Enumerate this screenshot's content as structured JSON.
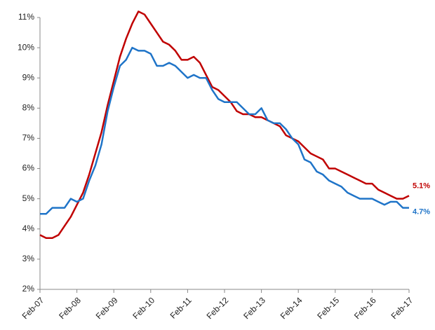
{
  "chart_data": {
    "type": "line",
    "categories": [
      "Feb-07",
      null,
      null,
      null,
      null,
      null,
      "Feb-08",
      null,
      null,
      null,
      null,
      null,
      "Feb-09",
      null,
      null,
      null,
      null,
      null,
      "Feb-10",
      null,
      null,
      null,
      null,
      null,
      "Feb-11",
      null,
      null,
      null,
      null,
      null,
      "Feb-12",
      null,
      null,
      null,
      null,
      null,
      "Feb-13",
      null,
      null,
      null,
      null,
      null,
      "Feb-14",
      null,
      null,
      null,
      null,
      null,
      "Feb-15",
      null,
      null,
      null,
      null,
      null,
      "Feb-16",
      null,
      null,
      null,
      null,
      null,
      "Feb-17"
    ],
    "series": [
      {
        "color": "#c00000",
        "values": [
          3.8,
          3.7,
          3.7,
          3.8,
          4.1,
          4.4,
          4.8,
          5.2,
          5.8,
          6.5,
          7.2,
          8.1,
          8.9,
          9.7,
          10.3,
          10.8,
          11.2,
          11.1,
          10.8,
          10.5,
          10.2,
          10.1,
          9.9,
          9.6,
          9.6,
          9.7,
          9.5,
          9.1,
          8.7,
          8.6,
          8.4,
          8.2,
          7.9,
          7.8,
          7.8,
          7.7,
          7.7,
          7.6,
          7.5,
          7.4,
          7.1,
          7.0,
          6.9,
          6.7,
          6.5,
          6.4,
          6.3,
          6.0,
          6.0,
          5.9,
          5.8,
          5.7,
          5.6,
          5.5,
          5.5,
          5.3,
          5.2,
          5.1,
          5.0,
          5.0,
          5.1
        ],
        "value_labels": [
          null,
          null,
          null,
          null,
          null,
          null,
          null,
          null,
          null,
          null,
          null,
          null,
          null,
          null,
          null,
          null,
          null,
          null,
          null,
          null,
          null,
          null,
          null,
          null,
          null,
          null,
          null,
          null,
          null,
          null,
          null,
          null,
          null,
          null,
          null,
          null,
          null,
          null,
          null,
          null,
          null,
          null,
          null,
          null,
          null,
          null,
          null,
          null,
          null,
          null,
          null,
          null,
          null,
          null,
          null,
          null,
          null,
          null,
          null,
          null,
          "5.1%"
        ]
      },
      {
        "color": "#1f74c8",
        "values": [
          4.5,
          4.5,
          4.7,
          4.7,
          4.7,
          5.0,
          4.9,
          5.0,
          5.6,
          6.1,
          6.8,
          7.9,
          8.7,
          9.4,
          9.6,
          10.0,
          9.9,
          9.9,
          9.8,
          9.4,
          9.4,
          9.5,
          9.4,
          9.2,
          9.0,
          9.1,
          9.0,
          9.0,
          8.6,
          8.3,
          8.2,
          8.2,
          8.2,
          8.0,
          7.8,
          7.8,
          8.0,
          7.6,
          7.5,
          7.5,
          7.3,
          7.0,
          6.8,
          6.3,
          6.2,
          5.9,
          5.8,
          5.6,
          5.5,
          5.4,
          5.2,
          5.1,
          5.0,
          5.0,
          5.0,
          4.9,
          4.8,
          4.9,
          4.9,
          4.7,
          4.7
        ],
        "value_labels": [
          null,
          null,
          null,
          null,
          null,
          null,
          null,
          null,
          null,
          null,
          null,
          null,
          null,
          null,
          null,
          null,
          null,
          null,
          null,
          null,
          null,
          null,
          null,
          null,
          null,
          null,
          null,
          null,
          null,
          null,
          null,
          null,
          null,
          null,
          null,
          null,
          null,
          null,
          null,
          null,
          null,
          null,
          null,
          null,
          null,
          null,
          null,
          null,
          null,
          null,
          null,
          null,
          null,
          null,
          null,
          null,
          null,
          null,
          null,
          null,
          "4.7%"
        ]
      }
    ],
    "ylim": [
      2,
      11
    ],
    "yticks": [
      {
        "value": 2,
        "label": "2%"
      },
      {
        "value": 3,
        "label": "3%"
      },
      {
        "value": 4,
        "label": "4%"
      },
      {
        "value": 5,
        "label": "5%"
      },
      {
        "value": 6,
        "label": "6%"
      },
      {
        "value": 7,
        "label": "7%"
      },
      {
        "value": 8,
        "label": "8%"
      },
      {
        "value": 9,
        "label": "9%"
      },
      {
        "value": 10,
        "label": "10%"
      },
      {
        "value": 11,
        "label": "11%"
      }
    ],
    "grid": false
  }
}
